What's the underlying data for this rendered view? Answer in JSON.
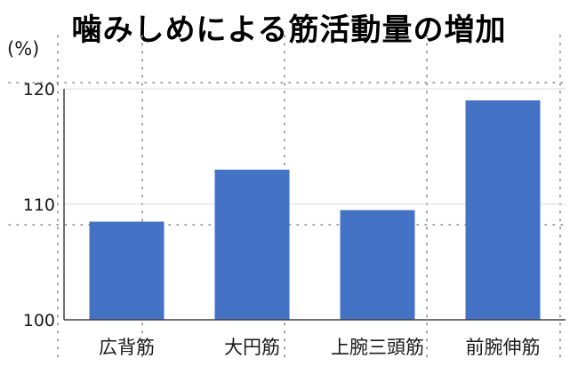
{
  "title": "噛みしめによる筋活動量の増加",
  "chart_data": {
    "type": "bar",
    "title": "噛みしめによる筋活動量の増加",
    "ylabel": "(%)",
    "xlabel": "",
    "categories": [
      "広背筋",
      "大円筋",
      "上腕三頭筋",
      "前腕伸筋"
    ],
    "values": [
      108.5,
      113,
      109.5,
      119
    ],
    "ylim": [
      100,
      120
    ],
    "yticks": [
      "100",
      "110",
      "120"
    ],
    "bar_color": "#4472C4",
    "grid": true,
    "legend": "none"
  }
}
